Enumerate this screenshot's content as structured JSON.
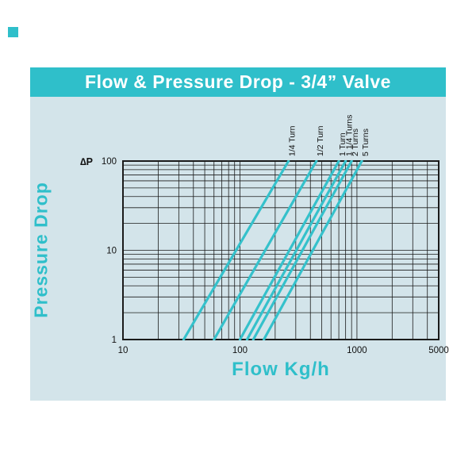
{
  "title": "Flow & Pressure Drop - 3/4”  Valve",
  "colors": {
    "teal": "#2fbfca",
    "panel": "#d3e4ea",
    "grid": "#1b1b1b",
    "curve": "#35c1cb",
    "tick_text": "#111111",
    "title_text": "#ffffff"
  },
  "chart_data": {
    "type": "line",
    "title": "Flow & Pressure Drop - 3/4” Valve",
    "xlabel": "Flow Kg/h",
    "ylabel": "Pressure Drop",
    "x_scale": "log",
    "y_scale": "log",
    "xlim": [
      10,
      5000
    ],
    "ylim": [
      1,
      100
    ],
    "x_ticks": [
      "10",
      "100",
      "1000",
      "5000"
    ],
    "y_ticks": [
      "100",
      "10",
      "1"
    ],
    "dp_label": "∆P",
    "grid": "log-minor-on",
    "legend_position": "rotated-labels-above-plot",
    "series": [
      {
        "name": "1/4 Turn",
        "points": [
          [
            33,
            1
          ],
          [
            260,
            100
          ]
        ]
      },
      {
        "name": "1/2 Turn",
        "points": [
          [
            60,
            1
          ],
          [
            450,
            100
          ]
        ]
      },
      {
        "name": "1 Turn",
        "points": [
          [
            100,
            1
          ],
          [
            700,
            100
          ]
        ]
      },
      {
        "name": "1 1/4 Turns",
        "points": [
          [
            115,
            1
          ],
          [
            800,
            100
          ]
        ]
      },
      {
        "name": "2 Turns",
        "points": [
          [
            130,
            1
          ],
          [
            900,
            100
          ]
        ]
      },
      {
        "name": "5 Turns",
        "points": [
          [
            160,
            1
          ],
          [
            1100,
            100
          ]
        ]
      }
    ]
  }
}
